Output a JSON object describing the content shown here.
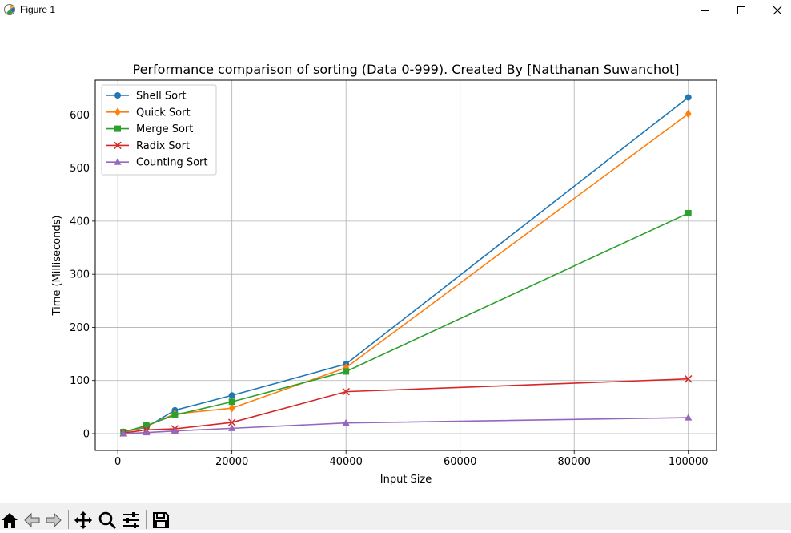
{
  "window": {
    "title": "Figure 1"
  },
  "toolbar": {
    "items": [
      "home-icon",
      "back-arrow-icon",
      "forward-arrow-icon",
      "pan-icon",
      "zoom-icon",
      "configure-subplots-icon",
      "save-icon"
    ]
  },
  "chart_data": {
    "type": "line",
    "title": "Performance comparison of sorting (Data 0-999). Created By [Natthanan Suwanchot]",
    "xlabel": "Input Size",
    "ylabel": "Time (Milliseconds)",
    "x": [
      1000,
      5000,
      10000,
      20000,
      40000,
      100000
    ],
    "xlim": [
      -3950,
      104950
    ],
    "ylim": [
      -31.7,
      665.4
    ],
    "xticks": [
      0,
      20000,
      40000,
      60000,
      80000,
      100000
    ],
    "yticks": [
      0,
      100,
      200,
      300,
      400,
      500,
      600
    ],
    "grid": true,
    "legend_position": "top-left",
    "series": [
      {
        "name": "Shell Sort",
        "color": "#1f77b4",
        "marker": "circle",
        "values": [
          3,
          12,
          44,
          72,
          131,
          633
        ]
      },
      {
        "name": "Quick Sort",
        "color": "#ff7f0e",
        "marker": "thin-diamond",
        "values": [
          2,
          14,
          37,
          48,
          124,
          602
        ]
      },
      {
        "name": "Merge Sort",
        "color": "#2ca02c",
        "marker": "square",
        "values": [
          3,
          15,
          35,
          60,
          117,
          415
        ]
      },
      {
        "name": "Radix Sort",
        "color": "#d62728",
        "marker": "x",
        "values": [
          1,
          7,
          9,
          21,
          79,
          103
        ]
      },
      {
        "name": "Counting Sort",
        "color": "#9467bd",
        "marker": "triangle",
        "values": [
          0,
          2,
          5,
          10,
          20,
          30
        ]
      }
    ]
  }
}
